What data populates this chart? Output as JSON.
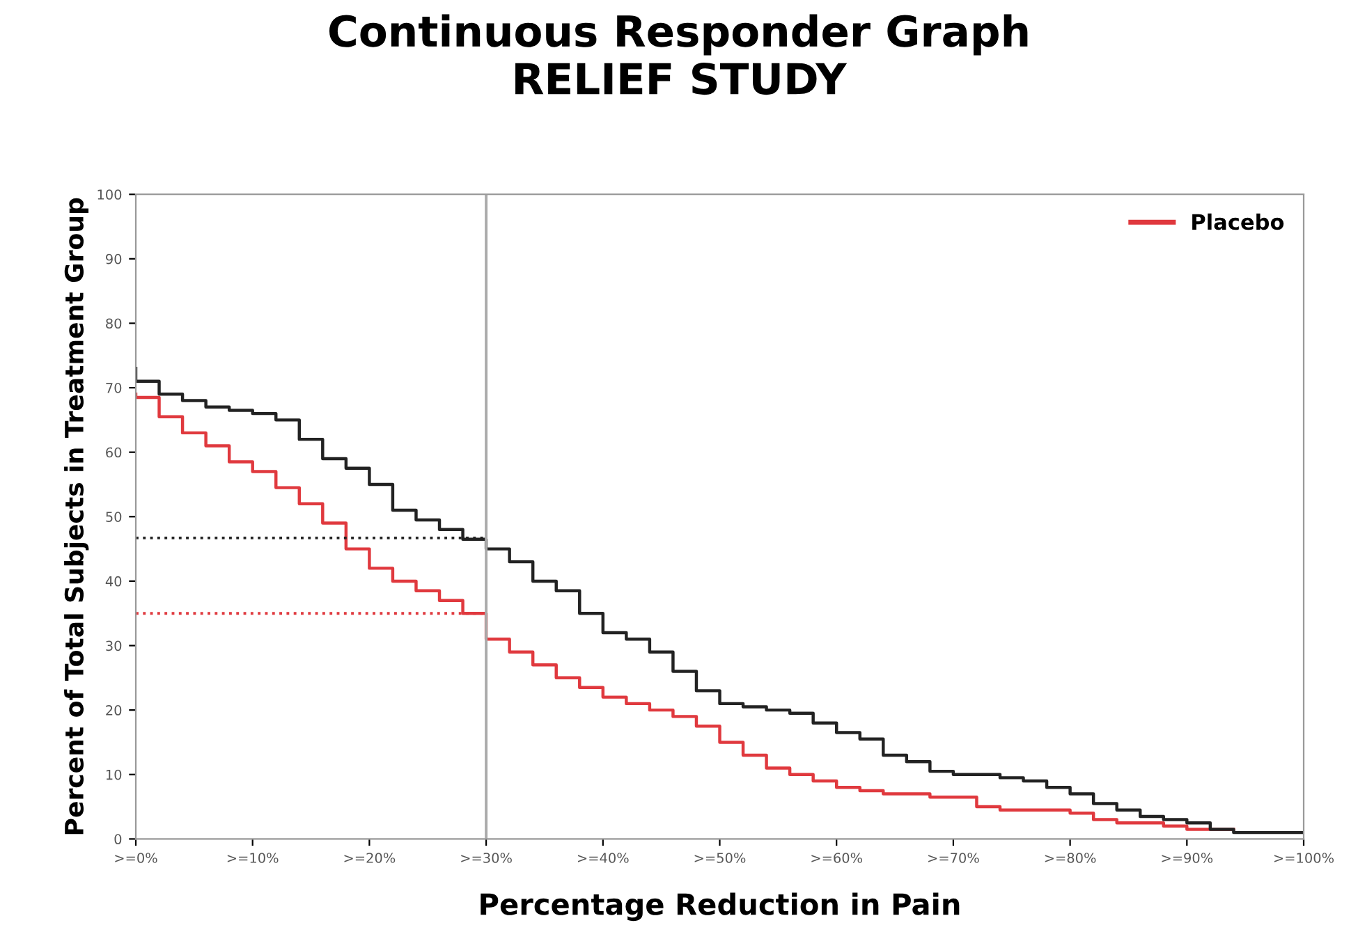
{
  "chart_data": {
    "type": "step",
    "title": "Continuous Responder Graph\nRELIEF STUDY",
    "xlabel": "Percentage Reduction in Pain",
    "ylabel": "Percent of Total Subjects in Treatment Group",
    "categories": [
      ">=0%",
      null,
      null,
      null,
      null,
      ">=10%",
      null,
      null,
      null,
      null,
      ">=20%",
      null,
      null,
      null,
      null,
      ">=30%",
      null,
      null,
      null,
      null,
      ">=40%",
      null,
      null,
      null,
      null,
      ">=50%",
      null,
      null,
      null,
      null,
      ">=60%",
      null,
      null,
      null,
      null,
      ">=70%",
      null,
      null,
      null,
      null,
      ">=80%",
      null,
      null,
      null,
      null,
      ">=90%",
      null,
      null,
      null,
      null,
      ">=100%"
    ],
    "series": [
      {
        "name": "Placebo",
        "color": "#e0393e",
        "values": [
          69,
          68.5,
          65.5,
          63,
          61,
          58.5,
          57,
          54.5,
          52,
          49,
          45,
          42,
          40,
          38.5,
          37,
          35,
          31,
          29,
          27,
          25,
          23.5,
          22,
          21,
          20,
          19,
          17.5,
          15,
          13,
          11,
          10,
          9,
          8,
          7.5,
          7,
          7,
          6.5,
          6.5,
          5,
          4.5,
          4.5,
          4.5,
          4,
          3,
          2.5,
          2.5,
          2,
          1.5,
          1.5,
          null,
          null,
          null
        ]
      },
      {
        "color": "#222222",
        "values": [
          73,
          71,
          69,
          68,
          67,
          66.5,
          66,
          65,
          62,
          59,
          57.5,
          55,
          51,
          49.5,
          48,
          46.5,
          45,
          43,
          40,
          38.5,
          35,
          32,
          31,
          29,
          26,
          23,
          21,
          20.5,
          20,
          19.5,
          18,
          16.5,
          15.5,
          13,
          12,
          10.5,
          10,
          10,
          9.5,
          9,
          8,
          7,
          5.5,
          4.5,
          3.5,
          3,
          2.5,
          1.5,
          1,
          1,
          1
        ]
      }
    ],
    "ylim": [
      0,
      100
    ],
    "yticks": [
      0,
      10,
      20,
      30,
      40,
      50,
      60,
      70,
      80,
      90,
      100
    ],
    "ref_lines": [
      {
        "axis": "x",
        "value": ">=30%",
        "color": "#aaaaaa",
        "line_style": "solid"
      },
      {
        "axis": "y",
        "value": 46.7,
        "color": "#222222",
        "line_style": "dotted"
      },
      {
        "axis": "y",
        "value": 35,
        "color": "#e0393e",
        "line_style": "dotted"
      }
    ],
    "legend": "top right",
    "grid": false,
    "line_style": "solid",
    "marker": "none"
  }
}
